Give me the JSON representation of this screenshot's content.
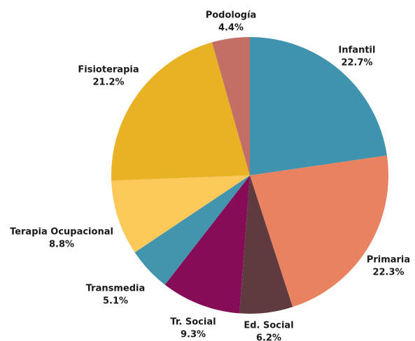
{
  "chart_data": {
    "type": "pie",
    "categories": [
      "Infantil",
      "Primaria",
      "Ed. Social",
      "Tr. Social",
      "Transmedia",
      "Terapia Ocupacional",
      "Fisioterapia",
      "Podología"
    ],
    "values": [
      22.7,
      22.3,
      6.2,
      9.3,
      5.1,
      8.8,
      21.2,
      4.4
    ],
    "value_labels": [
      "22.7%",
      "22.3%",
      "6.2%",
      "9.3%",
      "5.1%",
      "8.8%",
      "21.2%",
      "4.4%"
    ],
    "colors": [
      "#3f93ae",
      "#e98260",
      "#5f3a3f",
      "#860c57",
      "#4395ae",
      "#fec95b",
      "#e8b225",
      "#c46f66"
    ]
  }
}
